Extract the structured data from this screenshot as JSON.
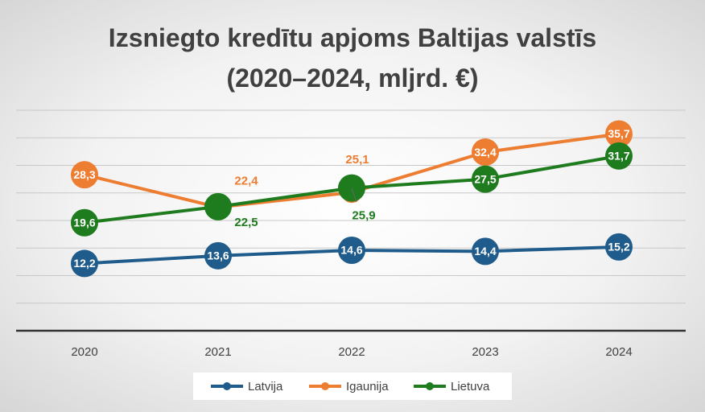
{
  "chart_data": {
    "type": "line",
    "title": "Izsniegto kredītu apjoms Baltijas valstīs (2020–2024, mljrd. €)",
    "categories": [
      "2020",
      "2021",
      "2022",
      "2023",
      "2024"
    ],
    "series": [
      {
        "name": "Latvija",
        "color": "#1f5c8b",
        "values": [
          12.2,
          13.6,
          14.6,
          14.4,
          15.2
        ],
        "value_labels": [
          "12,2",
          "13,6",
          "14,6",
          "14,4",
          "15,2"
        ]
      },
      {
        "name": "Igaunija",
        "color": "#ed7d31",
        "values": [
          28.3,
          22.4,
          25.1,
          32.4,
          35.7
        ],
        "value_labels": [
          "28,3",
          "22,4",
          "25,1",
          "32,4",
          "35,7"
        ]
      },
      {
        "name": "Lietuva",
        "color": "#1e7b1e",
        "values": [
          19.6,
          22.5,
          25.9,
          27.5,
          31.7
        ],
        "value_labels": [
          "19,6",
          "22,5",
          "25,9",
          "27,5",
          "31,7"
        ]
      }
    ],
    "ylim": [
      0,
      40
    ],
    "yticks": [
      0,
      5,
      10,
      15,
      20,
      25,
      30,
      35,
      40
    ],
    "grid": true,
    "legend": "bottom"
  }
}
